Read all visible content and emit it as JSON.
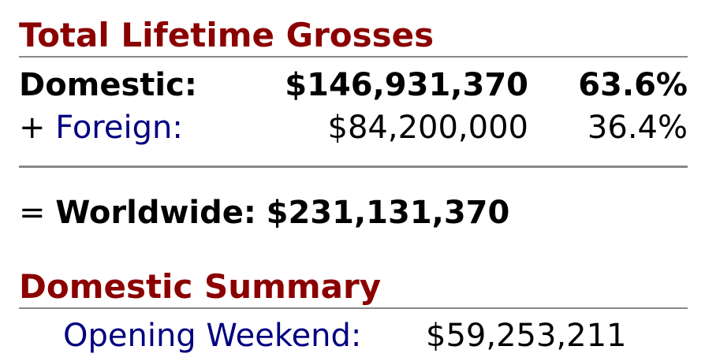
{
  "lifetime": {
    "title": "Total Lifetime Grosses",
    "domestic": {
      "label": "Domestic:",
      "amount": "$146,931,370",
      "percent": "63.6%"
    },
    "foreign": {
      "prefix": "+ ",
      "label": "Foreign:",
      "amount": "$84,200,000",
      "percent": "36.4%"
    },
    "worldwide": {
      "prefix": "= ",
      "label": "Worldwide:",
      "amount": "$231,131,370"
    }
  },
  "domestic_summary": {
    "title": "Domestic Summary",
    "opening_weekend": {
      "label": "Opening Weekend:",
      "amount": "$59,253,211"
    }
  },
  "colors": {
    "heading": "#8b0000",
    "label_blue": "#000080",
    "rule": "#888888"
  }
}
